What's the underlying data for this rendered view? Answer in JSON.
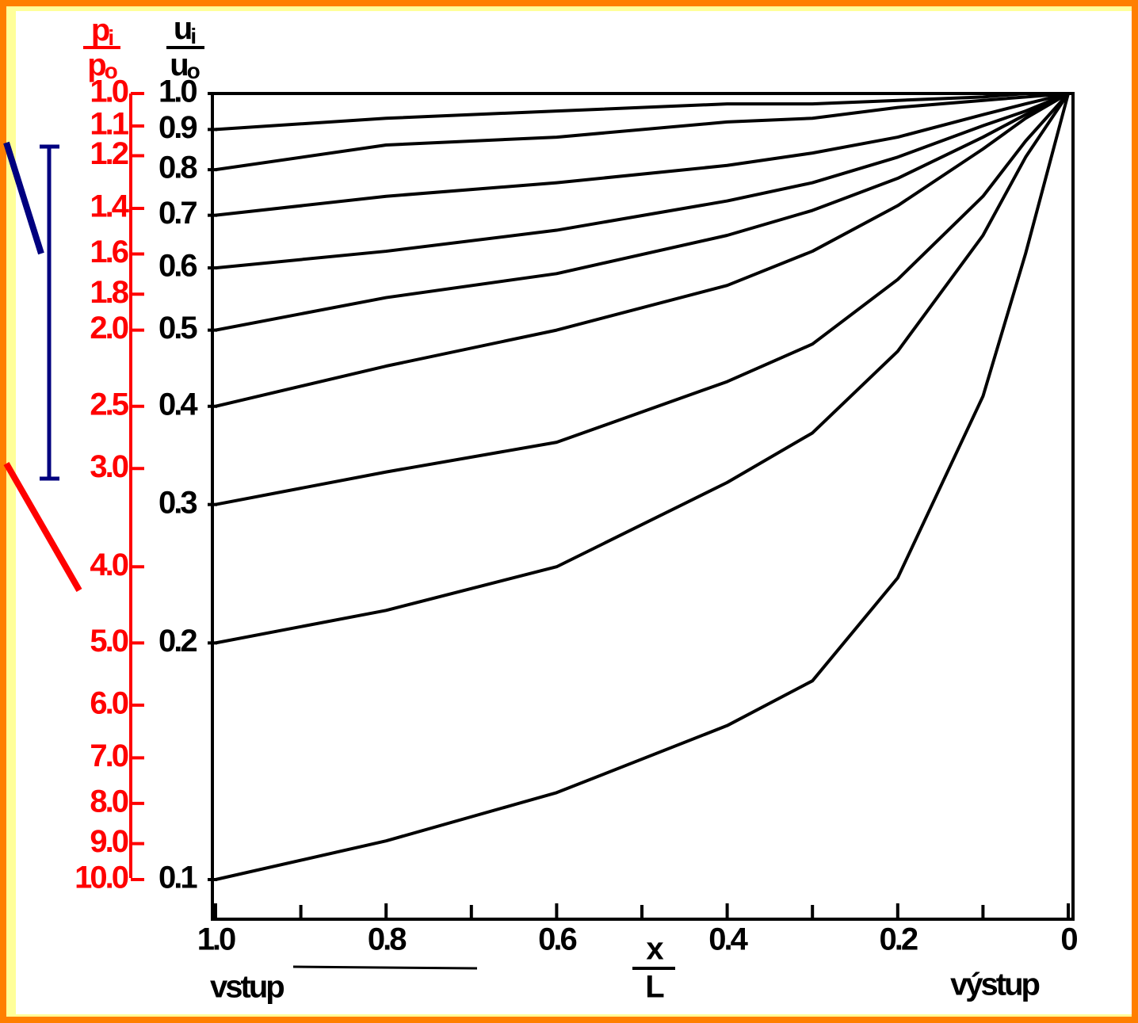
{
  "chart_data": {
    "type": "line",
    "y_label": {
      "numerator": "p",
      "numerator_sub": "i",
      "denominator": "p",
      "denominator_sub": "o"
    },
    "y2_label": {
      "numerator": "u",
      "numerator_sub": "i",
      "denominator": "u",
      "denominator_sub": "o"
    },
    "x_label": {
      "numerator": "x",
      "denominator": "L"
    },
    "annotations": {
      "inlet": "vstup",
      "outlet": "výstup"
    },
    "xlim": [
      1,
      0
    ],
    "xticks": [
      {
        "value": 1,
        "label": "1.0"
      },
      0.8,
      0.6,
      0.4,
      0.2,
      0
    ],
    "xminor_ticks": [
      0.9,
      0.7,
      0.5,
      0.3,
      0.1
    ],
    "ylim": [
      1,
      10
    ],
    "log_y": true,
    "yticks": [
      {
        "value": 1,
        "label": "1.0"
      },
      1.1,
      1.2,
      1.4,
      1.6,
      1.8,
      {
        "value": 2,
        "label": "2.0"
      },
      2.5,
      {
        "value": 3,
        "label": "3.0"
      },
      {
        "value": 4,
        "label": "4.0"
      },
      {
        "value": 5,
        "label": "5.0"
      },
      {
        "value": 6,
        "label": "6.0"
      },
      {
        "value": 7,
        "label": "7.0"
      },
      {
        "value": 8,
        "label": "8.0"
      },
      {
        "value": 9,
        "label": "9.0"
      },
      {
        "value": 10,
        "label": "10.0"
      }
    ],
    "y2lim": [
      1,
      0.1
    ],
    "y2ticks": [
      {
        "value": 1,
        "label": "1.0"
      },
      0.9,
      0.8,
      0.7,
      0.6,
      0.5,
      0.4,
      0.3,
      0.2,
      0.1
    ],
    "y_color": "#ff0000",
    "x": [
      1,
      0.8,
      0.6,
      0.4,
      0.3,
      0.2,
      0.1,
      0.05,
      0
    ],
    "series": [
      {
        "color": "#000000",
        "axis": "y2",
        "values": [
          1,
          1,
          1,
          1,
          1,
          1,
          1,
          1,
          1
        ]
      },
      {
        "color": "#000000",
        "axis": "y2",
        "values": [
          0.9,
          0.93,
          0.95,
          0.97,
          0.97,
          0.98,
          0.99,
          1,
          1
        ]
      },
      {
        "color": "#000000",
        "axis": "y2",
        "values": [
          0.8,
          0.86,
          0.88,
          0.92,
          0.93,
          0.96,
          0.98,
          0.99,
          1
        ]
      },
      {
        "color": "#000000",
        "axis": "y2",
        "values": [
          0.7,
          0.74,
          0.77,
          0.81,
          0.84,
          0.88,
          0.94,
          0.97,
          1
        ]
      },
      {
        "color": "#000000",
        "axis": "y2",
        "values": [
          0.6,
          0.63,
          0.67,
          0.73,
          0.77,
          0.83,
          0.91,
          0.95,
          1
        ]
      },
      {
        "color": "#000000",
        "axis": "y2",
        "values": [
          0.5,
          0.55,
          0.59,
          0.66,
          0.71,
          0.78,
          0.88,
          0.94,
          1
        ]
      },
      {
        "color": "#000000",
        "axis": "y2",
        "values": [
          0.4,
          0.45,
          0.5,
          0.57,
          0.63,
          0.72,
          0.85,
          0.93,
          1
        ]
      },
      {
        "color": "#000000",
        "axis": "y2",
        "values": [
          0.3,
          0.33,
          0.36,
          0.43,
          0.48,
          0.58,
          0.74,
          0.87,
          1
        ]
      },
      {
        "color": "#000000",
        "axis": "y2",
        "values": [
          0.2,
          0.22,
          0.25,
          0.32,
          0.37,
          0.47,
          0.66,
          0.83,
          1
        ]
      },
      {
        "color": "#000000",
        "axis": "y2",
        "values": [
          0.1,
          0.112,
          0.129,
          0.157,
          0.179,
          0.242,
          0.412,
          0.626,
          1
        ]
      }
    ]
  }
}
